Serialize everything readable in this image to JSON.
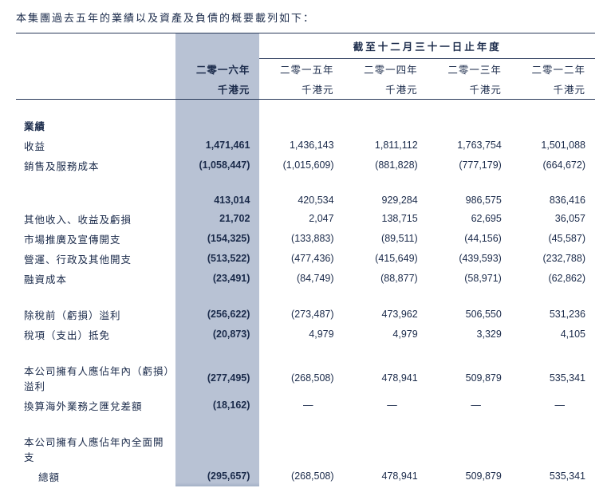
{
  "intro": "本集團過去五年的業績以及資產及負債的概要載列如下：",
  "table": {
    "super_header": "截至十二月三十一日止年度",
    "columns": [
      {
        "line1": "二零一六年",
        "line2": "千港元"
      },
      {
        "line1": "二零一五年",
        "line2": "千港元"
      },
      {
        "line1": "二零一四年",
        "line2": "千港元"
      },
      {
        "line1": "二零一三年",
        "line2": "千港元"
      },
      {
        "line1": "二零一二年",
        "line2": "千港元"
      }
    ],
    "section1_title": "業績",
    "rows1": [
      {
        "label": "收益",
        "v": [
          "1,471,461",
          "1,436,143",
          "1,811,112",
          "1,763,754",
          "1,501,088"
        ]
      },
      {
        "label": "銷售及服務成本",
        "v": [
          "(1,058,447)",
          "(1,015,609)",
          "(881,828)",
          "(777,179)",
          "(664,672)"
        ]
      }
    ],
    "rows2": [
      {
        "label": "",
        "v": [
          "413,014",
          "420,534",
          "929,284",
          "986,575",
          "836,416"
        ]
      },
      {
        "label": "其他收入、收益及虧損",
        "v": [
          "21,702",
          "2,047",
          "138,715",
          "62,695",
          "36,057"
        ]
      },
      {
        "label": "市場推廣及宣傳開支",
        "v": [
          "(154,325)",
          "(133,883)",
          "(89,511)",
          "(44,156)",
          "(45,587)"
        ]
      },
      {
        "label": "營運、行政及其他開支",
        "v": [
          "(513,522)",
          "(477,436)",
          "(415,649)",
          "(439,593)",
          "(232,788)"
        ]
      },
      {
        "label": "融資成本",
        "v": [
          "(23,491)",
          "(84,749)",
          "(88,877)",
          "(58,971)",
          "(62,862)"
        ]
      }
    ],
    "rows3": [
      {
        "label": "除稅前（虧損）溢利",
        "v": [
          "(256,622)",
          "(273,487)",
          "473,962",
          "506,550",
          "531,236"
        ]
      },
      {
        "label": "稅項（支出）抵免",
        "v": [
          "(20,873)",
          "4,979",
          "4,979",
          "3,329",
          "4,105"
        ]
      }
    ],
    "rows4": [
      {
        "label": "本公司擁有人應佔年內（虧損）溢利",
        "v": [
          "(277,495)",
          "(268,508)",
          "478,941",
          "509,879",
          "535,341"
        ]
      },
      {
        "label": "換算海外業務之匯兌差額",
        "v": [
          "(18,162)",
          "—",
          "—",
          "—",
          "—"
        ]
      }
    ],
    "rows5_label1": "本公司擁有人應佔年內全面開支",
    "rows5_label2": "總額",
    "rows5_v": [
      "(295,657)",
      "(268,508)",
      "478,941",
      "509,879",
      "535,341"
    ]
  }
}
